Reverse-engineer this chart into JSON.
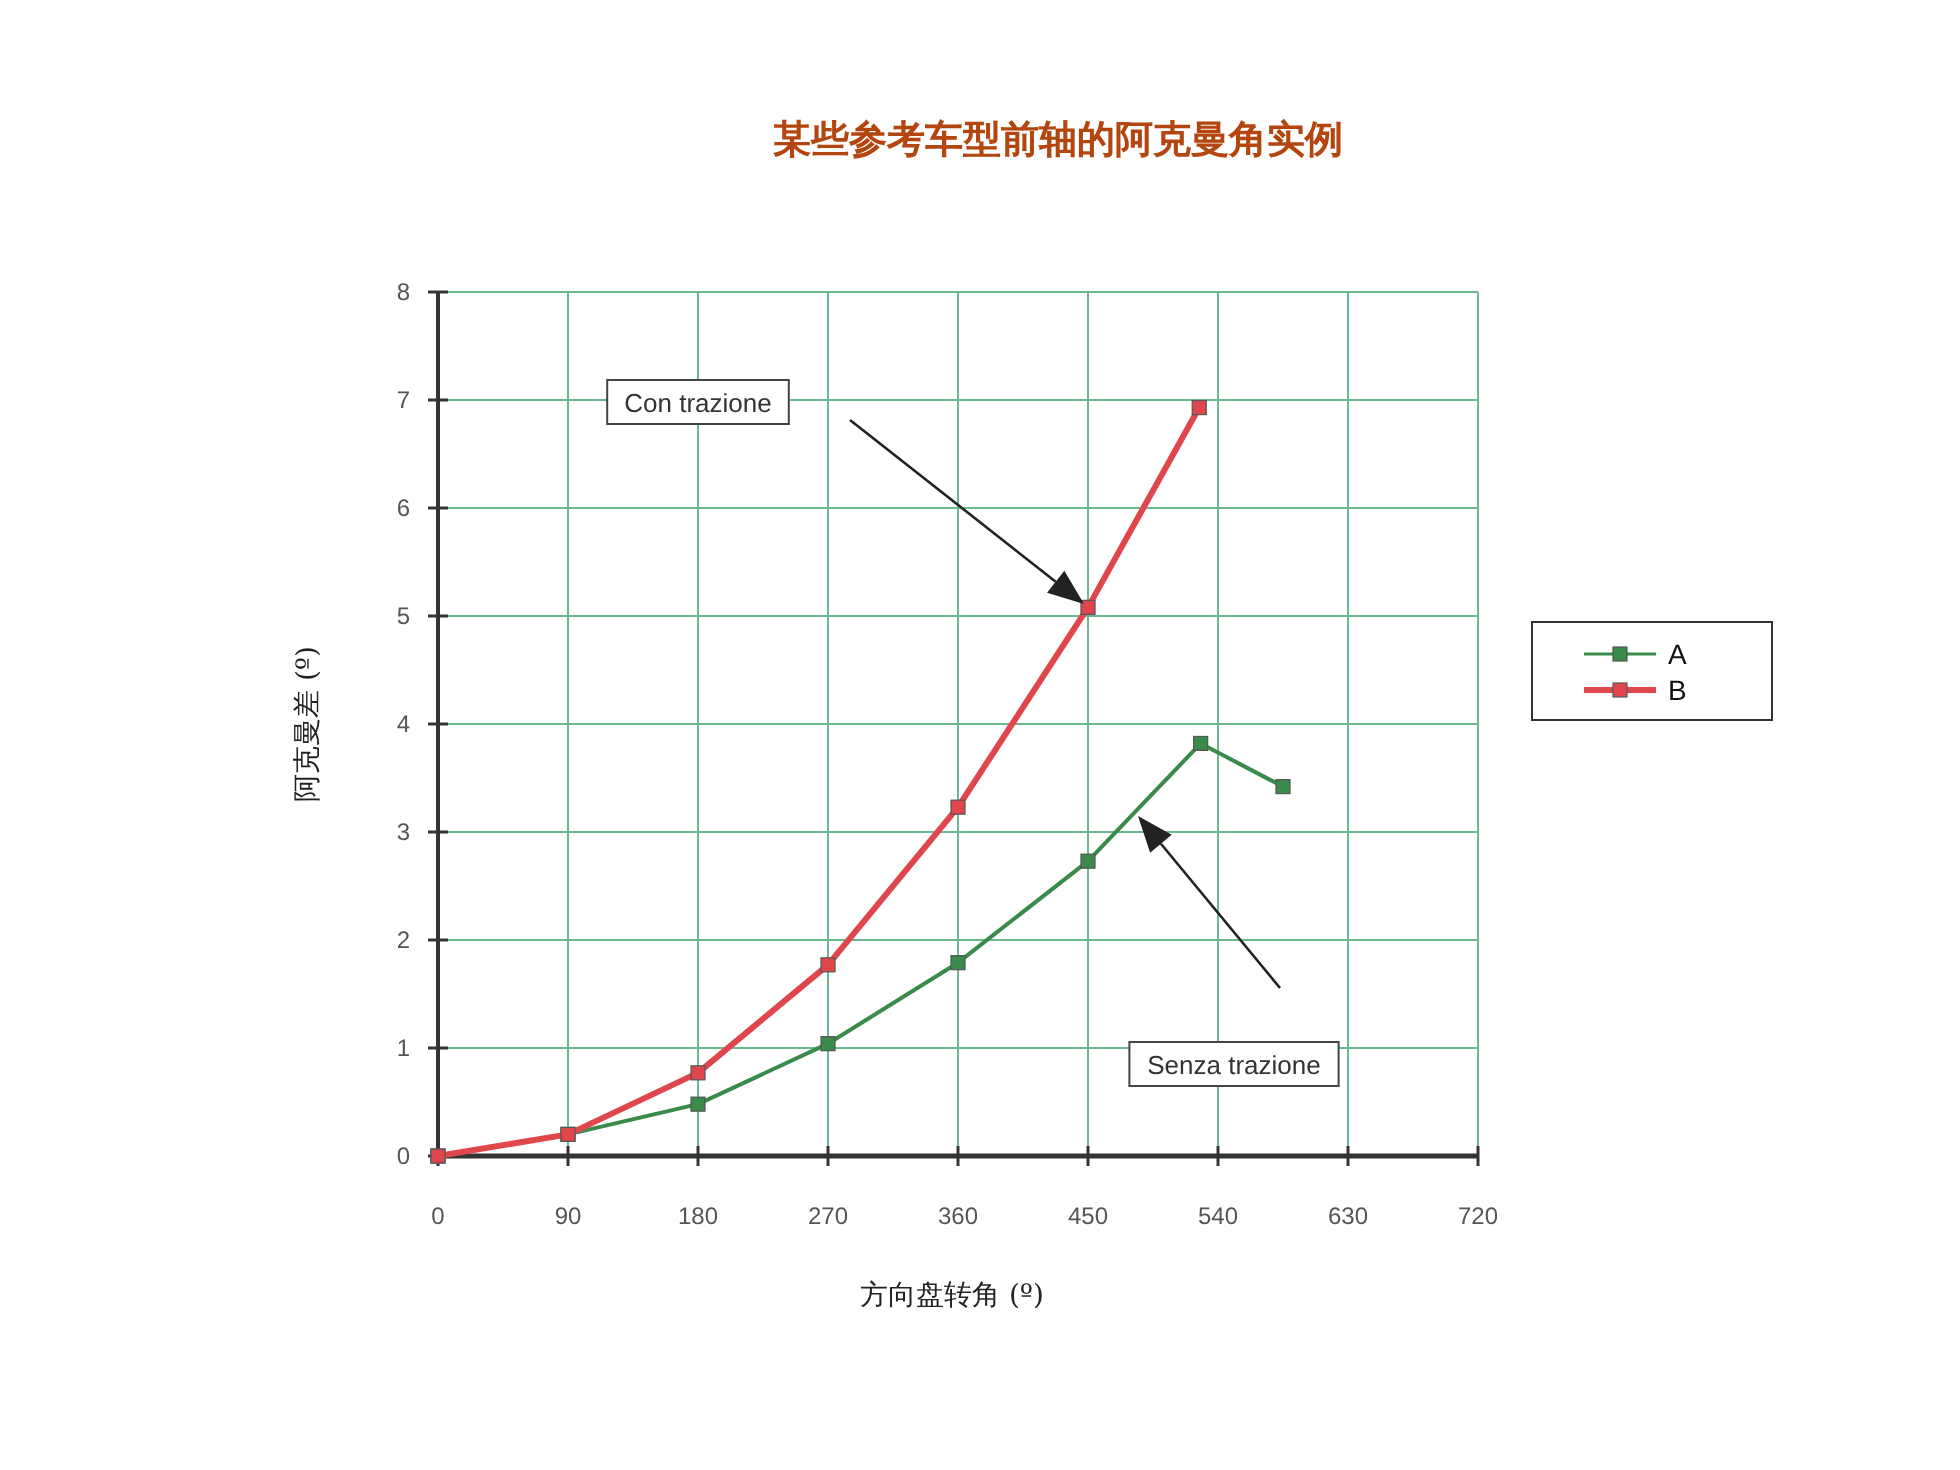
{
  "chart_data": {
    "type": "line",
    "title": "某些参考车型前轴的阿克曼角实例",
    "xlabel": "方向盘转角 (º)",
    "ylabel": "阿克曼差 (º)",
    "series": [
      {
        "name": "A",
        "color": "#3a8a4a",
        "x": [
          0,
          90,
          180,
          270,
          360,
          450,
          528,
          585
        ],
        "values": [
          0,
          0.2,
          0.48,
          1.04,
          1.79,
          2.73,
          3.82,
          3.42
        ]
      },
      {
        "name": "B",
        "color": "#e0474c",
        "x": [
          0,
          90,
          180,
          270,
          360,
          450,
          527
        ],
        "values": [
          0,
          0.2,
          0.77,
          1.77,
          3.23,
          5.08,
          6.93
        ]
      }
    ],
    "xlim": [
      0,
      720
    ],
    "xticks": [
      0,
      90,
      180,
      270,
      360,
      450,
      540,
      630,
      720
    ],
    "ylim": [
      0,
      8
    ],
    "yticks": [
      0,
      1,
      2,
      3,
      4,
      5,
      6,
      7,
      8
    ],
    "annotations": [
      "Con trazione",
      "Senza trazione"
    ],
    "grid": true,
    "legend": "right",
    "marker": "square",
    "line_style": "solid"
  }
}
